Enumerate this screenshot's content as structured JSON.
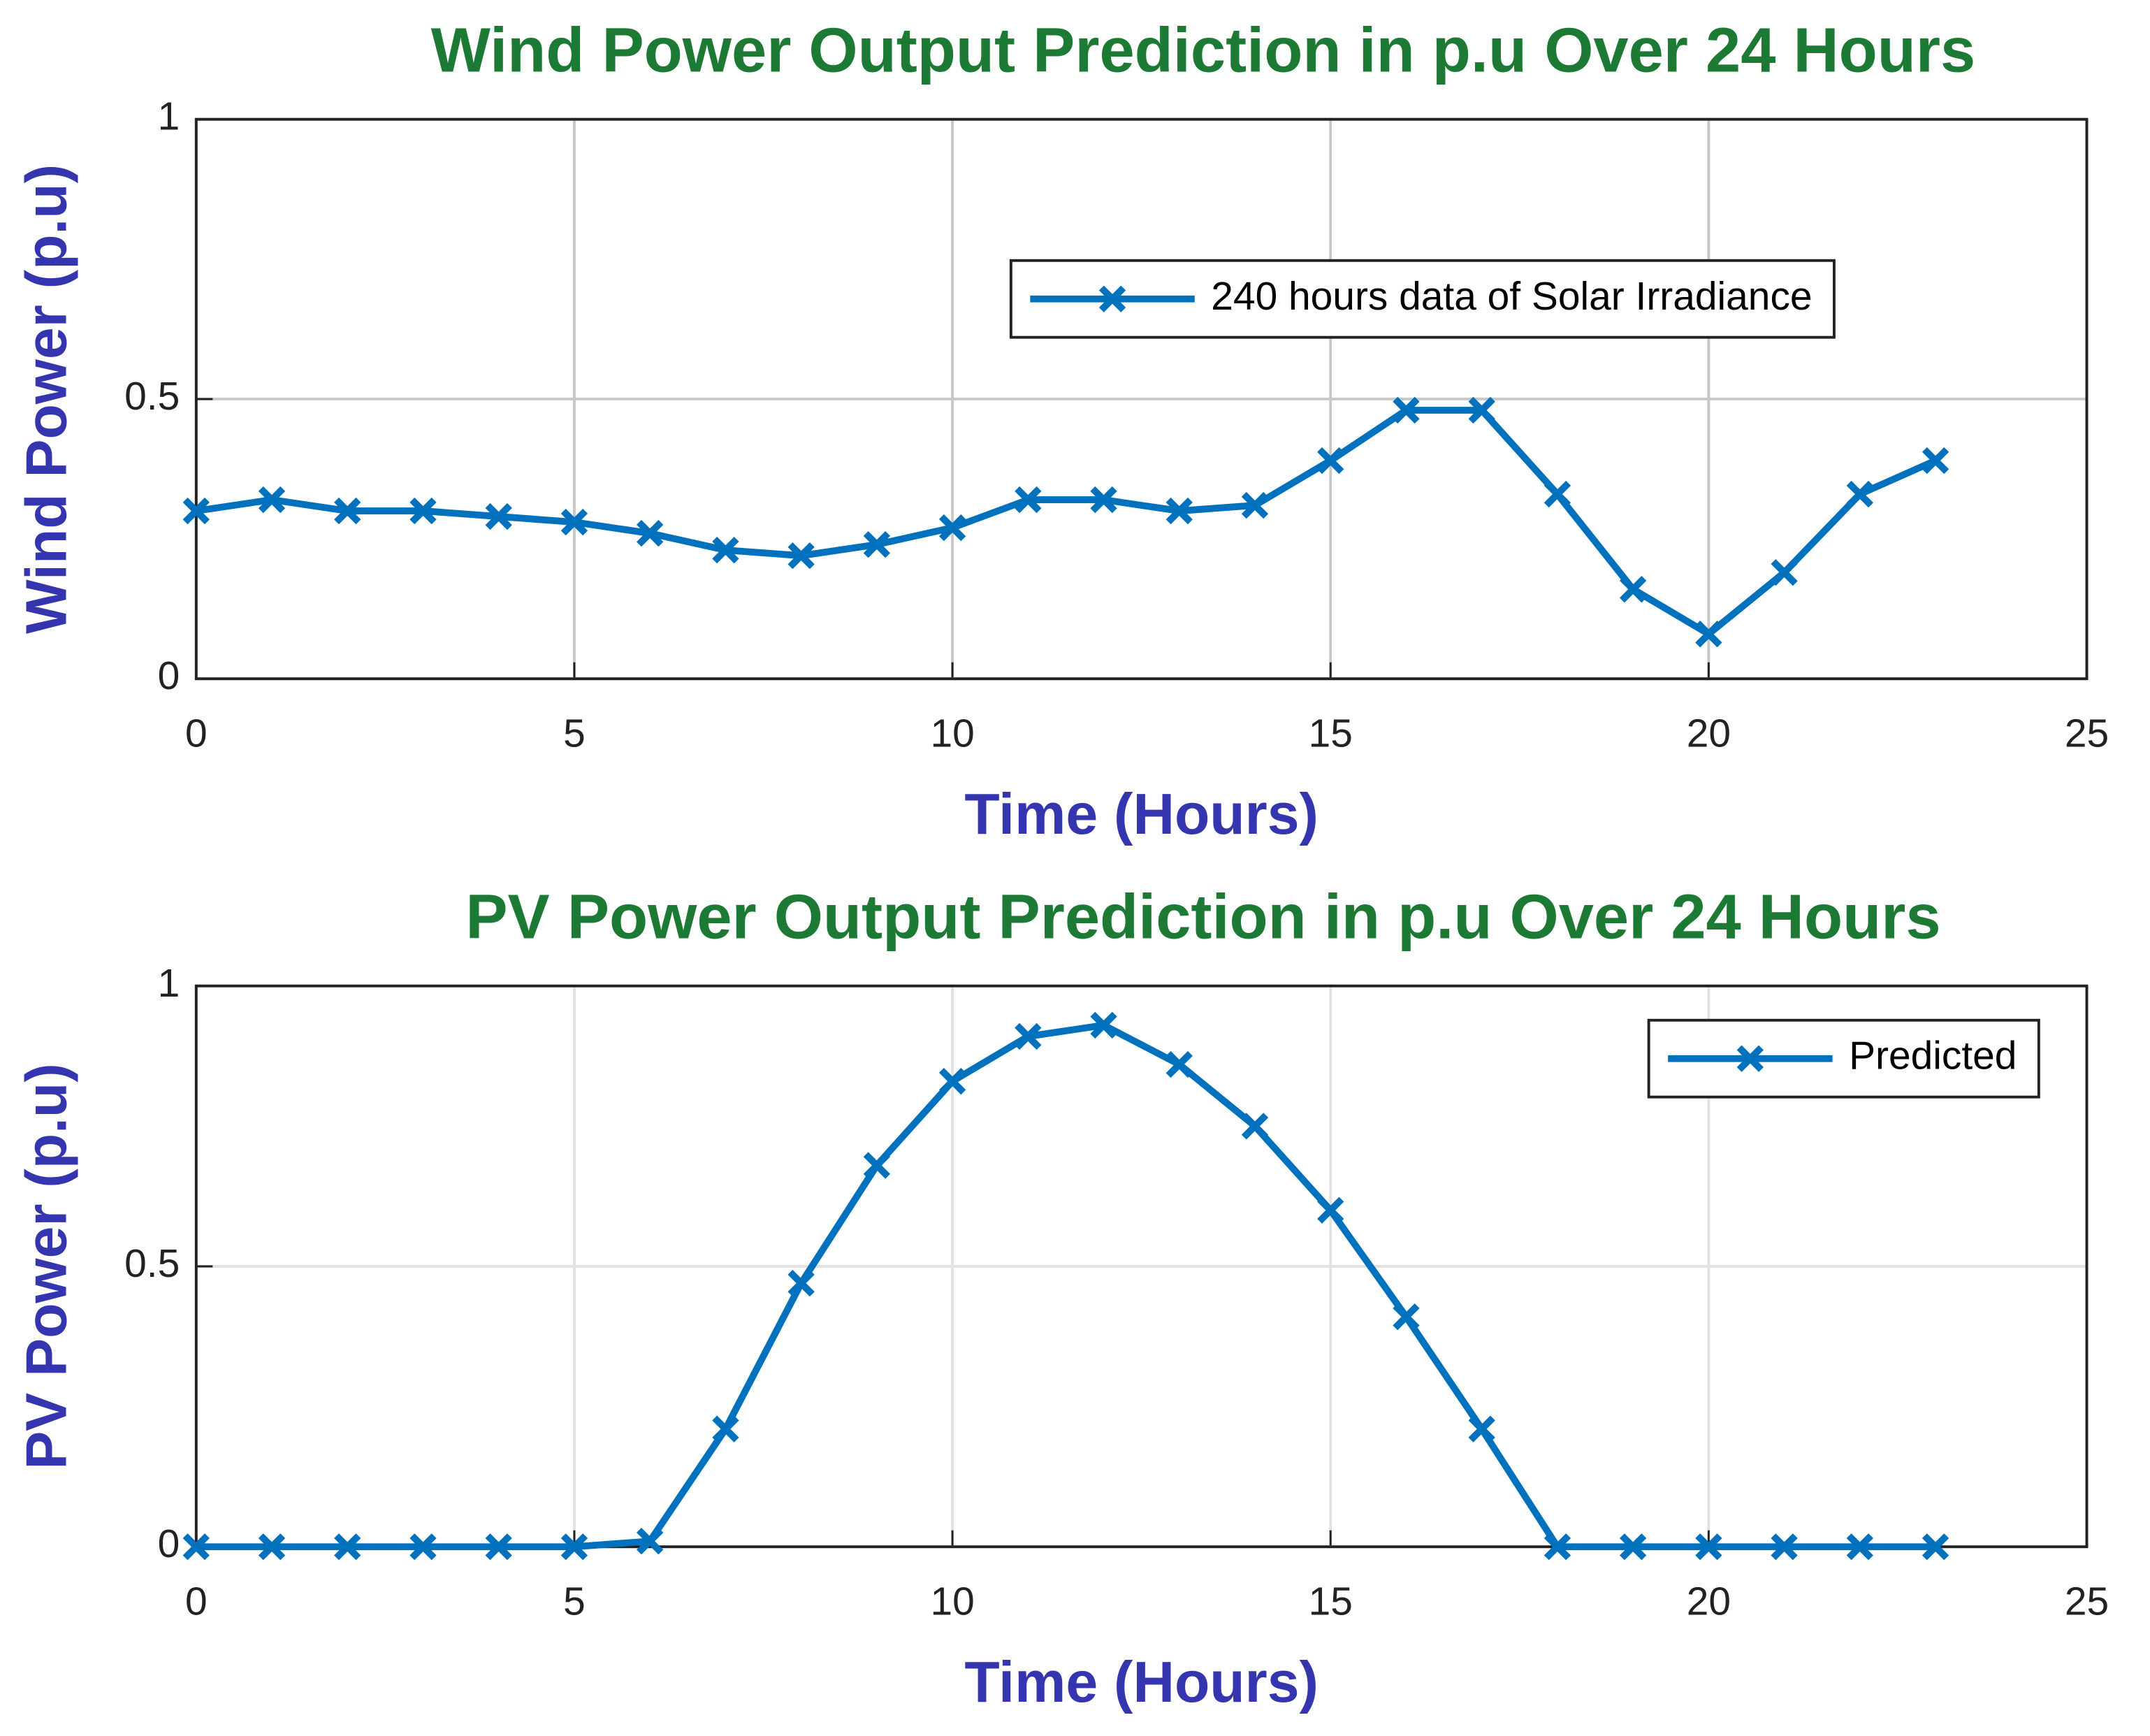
{
  "chart_data": [
    {
      "type": "line",
      "title": "Wind Power Output Prediction in p.u Over 24 Hours",
      "x_label": "Time (Hours)",
      "y_label": "Wind Power (p.u)",
      "x": [
        0,
        1,
        2,
        3,
        4,
        5,
        6,
        7,
        8,
        9,
        10,
        11,
        12,
        13,
        14,
        15,
        16,
        17,
        18,
        19,
        20,
        21,
        22,
        23
      ],
      "series": [
        {
          "name": "240 hours data of Solar Irradiance",
          "color": "#0072bd",
          "values": [
            0.3,
            0.32,
            0.3,
            0.3,
            0.29,
            0.28,
            0.26,
            0.23,
            0.22,
            0.24,
            0.27,
            0.32,
            0.32,
            0.3,
            0.31,
            0.39,
            0.48,
            0.48,
            0.33,
            0.16,
            0.08,
            0.19,
            0.33,
            0.39
          ]
        }
      ],
      "xlim": [
        0,
        25
      ],
      "xticks": [
        0,
        5,
        10,
        15,
        20,
        25
      ],
      "ylim": [
        0,
        1
      ],
      "yticks": [
        0,
        0.5,
        1
      ],
      "grid": true,
      "grid_color": "#c8c8c8",
      "legend": "north"
    },
    {
      "type": "line",
      "title": "PV Power Output Prediction in p.u Over 24 Hours",
      "x_label": "Time (Hours)",
      "y_label": "PV Power (p.u)",
      "x": [
        0,
        1,
        2,
        3,
        4,
        5,
        6,
        7,
        8,
        9,
        10,
        11,
        12,
        13,
        14,
        15,
        16,
        17,
        18,
        19,
        20,
        21,
        22,
        23
      ],
      "series": [
        {
          "name": "Predicted",
          "color": "#0072bd",
          "values": [
            0,
            0,
            0,
            0,
            0,
            0,
            0.01,
            0.21,
            0.47,
            0.68,
            0.83,
            0.91,
            0.93,
            0.86,
            0.75,
            0.6,
            0.41,
            0.21,
            0,
            0,
            0,
            0,
            0,
            0
          ]
        }
      ],
      "xlim": [
        0,
        25
      ],
      "xticks": [
        0,
        5,
        10,
        15,
        20,
        25
      ],
      "ylim": [
        0,
        1
      ],
      "yticks": [
        0,
        0.5,
        1
      ],
      "grid": true,
      "grid_color": "#e2e2e2",
      "legend": "northeast"
    }
  ]
}
